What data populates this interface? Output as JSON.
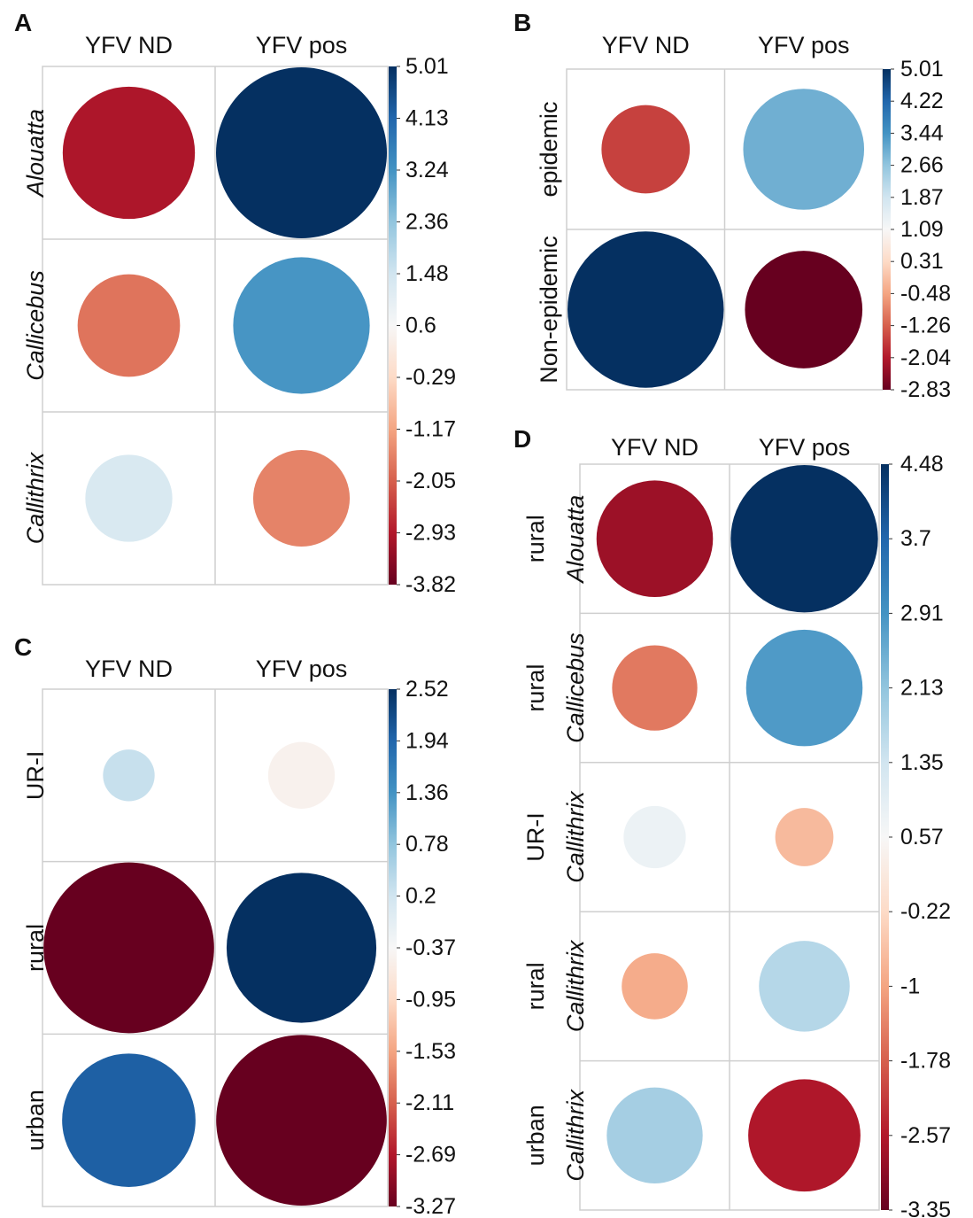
{
  "chart_data": [
    {
      "type": "heatmap",
      "panel": "A",
      "columns": [
        "YFV ND",
        "YFV pos"
      ],
      "rows": [
        {
          "lines": [
            {
              "text": "Alouatta",
              "italic": true
            }
          ]
        },
        {
          "lines": [
            {
              "text": "Callicebus",
              "italic": true
            }
          ]
        },
        {
          "lines": [
            {
              "text": "Callithrix",
              "italic": true
            }
          ]
        }
      ],
      "values": [
        [
          -3.0,
          5.01
        ],
        [
          -1.8,
          3.2
        ],
        [
          1.3,
          -1.6
        ]
      ],
      "colorbar": {
        "min": -3.82,
        "max": 5.01,
        "ticks": [
          "5.01",
          "4.13",
          "3.24",
          "2.36",
          "1.48",
          "0.6",
          "-0.29",
          "-1.17",
          "-2.05",
          "-2.93",
          "-3.82"
        ]
      }
    },
    {
      "type": "heatmap",
      "panel": "B",
      "columns": [
        "YFV ND",
        "YFV pos"
      ],
      "rows": [
        {
          "lines": [
            {
              "text": "epidemic",
              "italic": false
            }
          ]
        },
        {
          "lines": [
            {
              "text": "Non-epidemic",
              "italic": false
            }
          ]
        }
      ],
      "values": [
        [
          -1.6,
          3.0
        ],
        [
          5.01,
          -2.83
        ]
      ],
      "colorbar": {
        "min": -2.83,
        "max": 5.01,
        "ticks": [
          "5.01",
          "4.22",
          "3.44",
          "2.66",
          "1.87",
          "1.09",
          "0.31",
          "-0.48",
          "-1.26",
          "-2.04",
          "-2.83"
        ]
      }
    },
    {
      "type": "heatmap",
      "panel": "C",
      "columns": [
        "YFV ND",
        "YFV pos"
      ],
      "rows": [
        {
          "lines": [
            {
              "text": "UR-I",
              "italic": false
            }
          ]
        },
        {
          "lines": [
            {
              "text": "rural",
              "italic": false
            }
          ]
        },
        {
          "lines": [
            {
              "text": "urban",
              "italic": false
            }
          ]
        }
      ],
      "values": [
        [
          0.3,
          -0.5
        ],
        [
          -3.27,
          2.52
        ],
        [
          2.0,
          -3.27
        ]
      ],
      "colorbar": {
        "min": -3.27,
        "max": 2.52,
        "ticks": [
          "2.52",
          "1.94",
          "1.36",
          "0.78",
          "0.2",
          "-0.37",
          "-0.95",
          "-1.53",
          "-2.11",
          "-2.69",
          "-3.27"
        ]
      }
    },
    {
      "type": "heatmap",
      "panel": "D",
      "columns": [
        "YFV ND",
        "YFV pos"
      ],
      "rows": [
        {
          "lines": [
            {
              "text": "rural",
              "italic": false
            },
            {
              "text": "Alouatta",
              "italic": true
            }
          ]
        },
        {
          "lines": [
            {
              "text": "rural",
              "italic": false
            },
            {
              "text": "Callicebus",
              "italic": true
            }
          ]
        },
        {
          "lines": [
            {
              "text": "UR-I",
              "italic": false
            },
            {
              "text": "Callithrix",
              "italic": true
            }
          ]
        },
        {
          "lines": [
            {
              "text": "rural",
              "italic": false
            },
            {
              "text": "Callithrix",
              "italic": true
            }
          ]
        },
        {
          "lines": [
            {
              "text": "urban",
              "italic": false
            },
            {
              "text": "Callithrix",
              "italic": true
            }
          ]
        }
      ],
      "values": [
        [
          -2.8,
          4.48
        ],
        [
          -1.5,
          2.8
        ],
        [
          0.8,
          -0.7
        ],
        [
          -0.9,
          1.7
        ],
        [
          1.9,
          -2.6
        ]
      ],
      "colorbar": {
        "min": -3.35,
        "max": 4.48,
        "ticks": [
          "4.48",
          "3.7",
          "2.91",
          "2.13",
          "1.35",
          "0.57",
          "-0.22",
          "-1",
          "-1.78",
          "-2.57",
          "-3.35"
        ]
      }
    }
  ]
}
